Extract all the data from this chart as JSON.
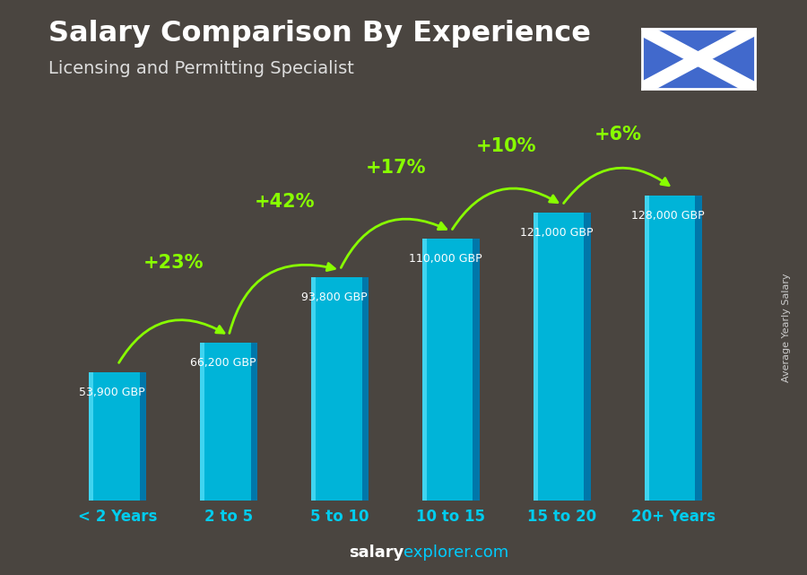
{
  "categories": [
    "< 2 Years",
    "2 to 5",
    "5 to 10",
    "10 to 15",
    "15 to 20",
    "20+ Years"
  ],
  "values": [
    53900,
    66200,
    93800,
    110000,
    121000,
    128000
  ],
  "labels": [
    "53,900 GBP",
    "66,200 GBP",
    "93,800 GBP",
    "110,000 GBP",
    "121,000 GBP",
    "128,000 GBP"
  ],
  "pct_changes": [
    "+23%",
    "+42%",
    "+17%",
    "+10%",
    "+6%"
  ],
  "title": "Salary Comparison By Experience",
  "subtitle": "Licensing and Permitting Specialist",
  "ylabel": "Average Yearly Salary",
  "footer_bold": "salary",
  "footer_normal": "explorer.com",
  "bg_color": "#4a4540",
  "bar_face_color": "#00b4d8",
  "bar_left_highlight": "#40d4f0",
  "bar_right_shadow": "#0077aa",
  "bar_top_color": "#80ccdd",
  "pct_color": "#88ff00",
  "arrow_color": "#88ff00",
  "label_color": "#ffffff",
  "xtick_color": "#00ccee",
  "title_color": "#ffffff",
  "subtitle_color": "#dddddd",
  "ylabel_color": "#cccccc",
  "bar_width": 0.52,
  "ylim_max": 145000,
  "flag_blue": "#4169cc"
}
